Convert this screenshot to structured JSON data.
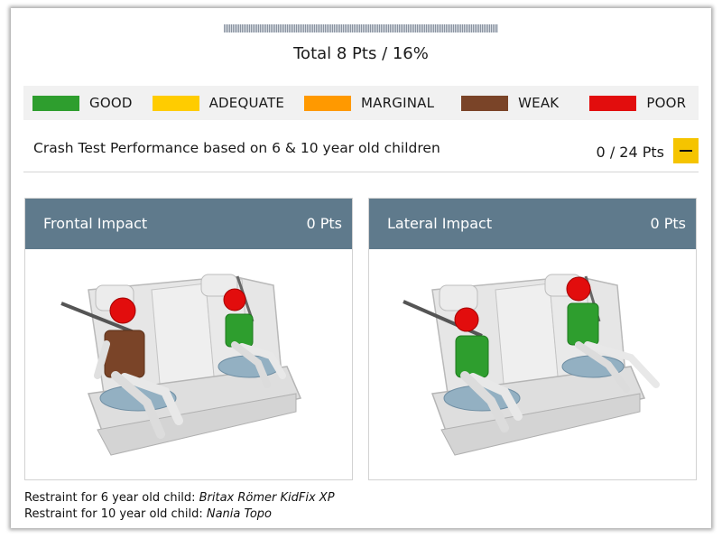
{
  "total": {
    "label": "Total 8 Pts / 16%"
  },
  "legend": [
    {
      "label": "GOOD",
      "color": "#2e9e2e"
    },
    {
      "label": "ADEQUATE",
      "color": "#ffcc00"
    },
    {
      "label": "MARGINAL",
      "color": "#ff9900"
    },
    {
      "label": "WEAK",
      "color": "#7a4428"
    },
    {
      "label": "POOR",
      "color": "#e20d0d"
    }
  ],
  "section": {
    "title": "Crash Test Performance based on 6 & 10 year old children",
    "score": "0 / 24 Pts",
    "collapse_icon": "minus-icon"
  },
  "cards": [
    {
      "title": "Frontal Impact",
      "points": "0 Pts"
    },
    {
      "title": "Lateral Impact",
      "points": "0 Pts"
    }
  ],
  "restraints": {
    "six_label": "Restraint for 6 year old child:",
    "six_value": "Britax Römer KidFix XP",
    "ten_label": "Restraint for 10 year old child:",
    "ten_value": "Nania Topo"
  }
}
